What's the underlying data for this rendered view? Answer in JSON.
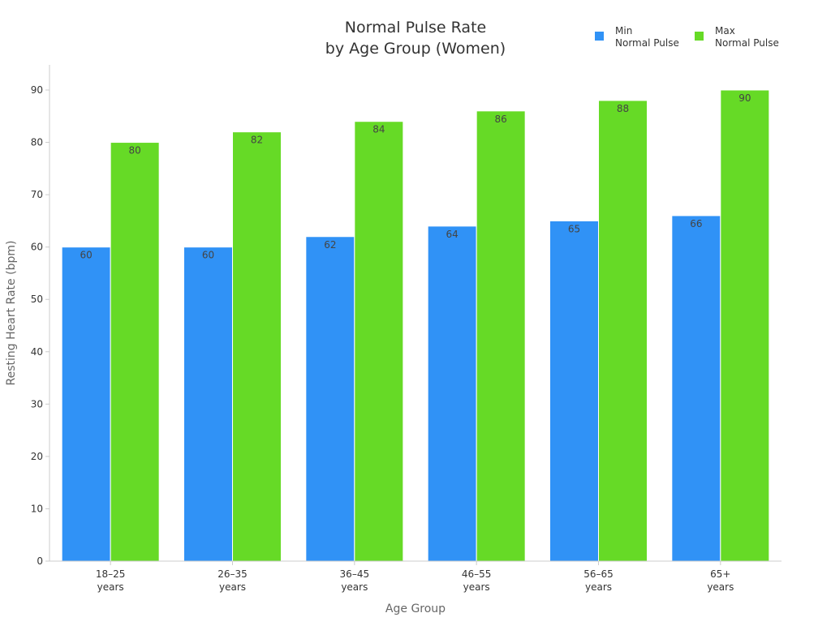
{
  "chart_data": {
    "type": "bar",
    "title_lines": [
      "Normal Pulse Rate",
      "by Age Group (Women)"
    ],
    "xlabel": "Age Group",
    "ylabel": "Resting Heart Rate (bpm)",
    "categories": [
      [
        "18–25",
        "years"
      ],
      [
        "26–35",
        "years"
      ],
      [
        "36–45",
        "years"
      ],
      [
        "46–55",
        "years"
      ],
      [
        "56–65",
        "years"
      ],
      [
        "65+",
        "years"
      ]
    ],
    "ylim": [
      0,
      90
    ],
    "yticks": [
      0,
      10,
      20,
      30,
      40,
      50,
      60,
      70,
      80,
      90
    ],
    "grid": false,
    "legend_position": "top-right",
    "series": [
      {
        "name_lines": [
          "Min",
          "Normal Pulse"
        ],
        "color": "#3092f6",
        "values": [
          60,
          60,
          62,
          64,
          65,
          66
        ]
      },
      {
        "name_lines": [
          "Max",
          "Normal Pulse"
        ],
        "color": "#66da26",
        "values": [
          80,
          82,
          84,
          86,
          88,
          90
        ]
      }
    ]
  }
}
